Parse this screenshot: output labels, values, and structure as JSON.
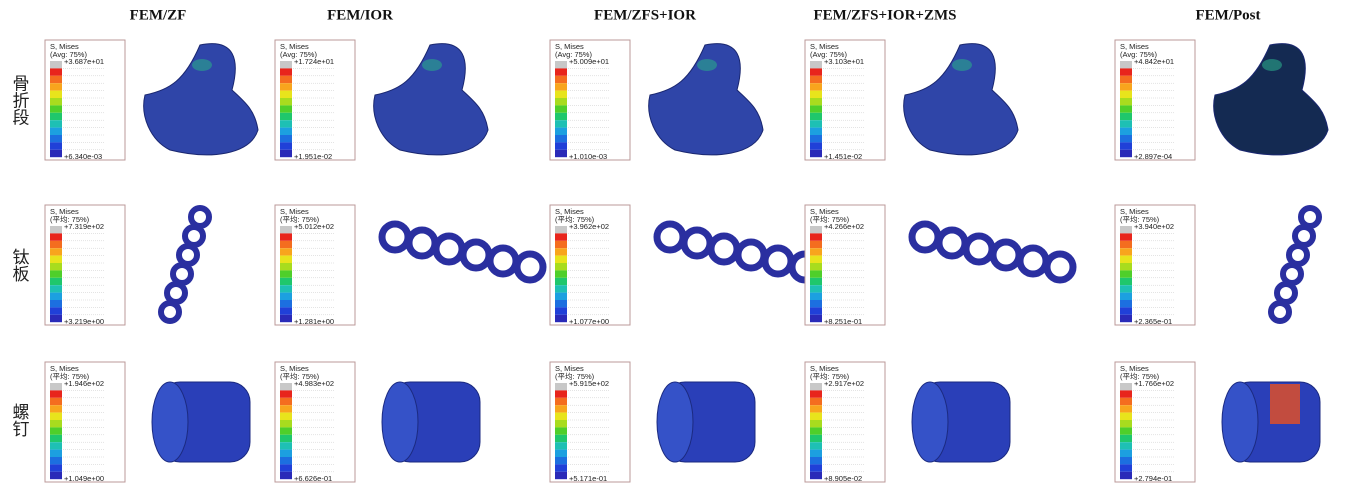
{
  "columns": [
    {
      "title": "FEM/ZF"
    },
    {
      "title": "FEM/IOR"
    },
    {
      "title": "FEM/ZFS+IOR"
    },
    {
      "title": "FEM/ZFS+IOR+ZMS"
    },
    {
      "title": "FEM/Post"
    }
  ],
  "rows": [
    {
      "label": "骨折段",
      "cells": [
        {
          "title": "S, Mises",
          "avg": "(Avg: 75%)",
          "max": "+3.687e+01",
          "min": "+6.340e-03"
        },
        {
          "title": "S, Mises",
          "avg": "(Avg: 75%)",
          "max": "+1.724e+01",
          "min": "+1.951e-02"
        },
        {
          "title": "S, Mises",
          "avg": "(Avg: 75%)",
          "max": "+5.009e+01",
          "min": "+1.010e-03"
        },
        {
          "title": "S, Mises",
          "avg": "(Avg: 75%)",
          "max": "+3.103e+01",
          "min": "+1.451e-02"
        },
        {
          "title": "S, Mises",
          "avg": "(Avg: 75%)",
          "max": "+4.842e+01",
          "min": "+2.897e-04"
        }
      ]
    },
    {
      "label": "钛板",
      "cells": [
        {
          "title": "S, Mises",
          "avg": "(平均: 75%)",
          "max": "+7.319e+02",
          "min": "+3.219e+00"
        },
        {
          "title": "S, Mises",
          "avg": "(平均: 75%)",
          "max": "+5.012e+02",
          "min": "+1.281e+00"
        },
        {
          "title": "S, Mises",
          "avg": "(平均: 75%)",
          "max": "+3.962e+02",
          "min": "+1.077e+00"
        },
        {
          "title": "S, Mises",
          "avg": "(平均: 75%)",
          "max": "+4.266e+02",
          "min": "+8.251e-01"
        },
        {
          "title": "S, Mises",
          "avg": "(平均: 75%)",
          "max": "+3.940e+02",
          "min": "+2.365e-01"
        }
      ]
    },
    {
      "label": "螺钉",
      "cells": [
        {
          "title": "S, Mises",
          "avg": "(平均: 75%)",
          "max": "+1.946e+02",
          "min": "+1.049e+00"
        },
        {
          "title": "S, Mises",
          "avg": "(平均: 75%)",
          "max": "+4.983e+02",
          "min": "+6.626e-01"
        },
        {
          "title": "S, Mises",
          "avg": "(平均: 75%)",
          "max": "+5.915e+02",
          "min": "+5.171e-01"
        },
        {
          "title": "S, Mises",
          "avg": "(平均: 75%)",
          "max": "+2.917e+02",
          "min": "+8.905e-02"
        },
        {
          "title": "S, Mises",
          "avg": "(平均: 75%)",
          "max": "+1.766e+02",
          "min": "+2.794e-01"
        }
      ]
    }
  ]
}
